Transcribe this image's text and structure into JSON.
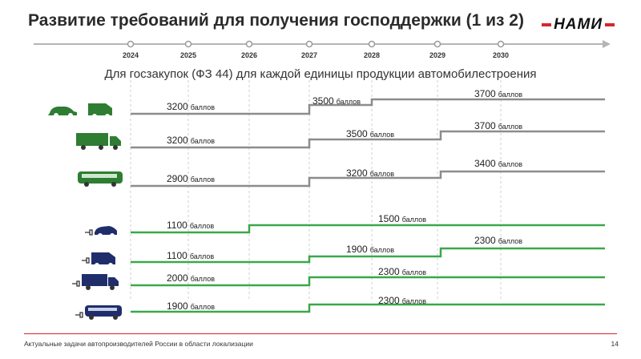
{
  "title": "Развитие требований для получения господдержки (1 из 2)",
  "logo": "НАМИ",
  "subtitle": "Для госзакупок (ФЗ 44) для каждой единицы продукции автомобилестроения",
  "years": [
    "2024",
    "2025",
    "2026",
    "2027",
    "2028",
    "2029",
    "2030"
  ],
  "unit": "баллов",
  "colors": {
    "ice": "#8c8c8c",
    "ev": "#3aa84a",
    "accent": "#d7252b",
    "icon_ice": "#2e7d32",
    "icon_ev": "#1f2e6b"
  },
  "rows": [
    {
      "icon": "car-and-van-icon",
      "type": "ice",
      "labels": [
        "3200",
        "3500",
        "3700"
      ]
    },
    {
      "icon": "truck-icon",
      "type": "ice",
      "labels": [
        "3200",
        "3500",
        "3700"
      ]
    },
    {
      "icon": "bus-icon",
      "type": "ice",
      "labels": [
        "2900",
        "3200",
        "3400"
      ]
    },
    {
      "icon": "electric-car-icon",
      "type": "ev",
      "labels": [
        "1100",
        "1500"
      ]
    },
    {
      "icon": "electric-van-icon",
      "type": "ev",
      "labels": [
        "1100",
        "1900",
        "2300"
      ]
    },
    {
      "icon": "electric-truck-icon",
      "type": "ev",
      "labels": [
        "2000",
        "2300"
      ]
    },
    {
      "icon": "electric-bus-icon",
      "type": "ev",
      "labels": [
        "1900",
        "2300"
      ]
    }
  ],
  "footer": "Актуальные задачи автопроизводителей России в области локализации",
  "page_number": "14"
}
